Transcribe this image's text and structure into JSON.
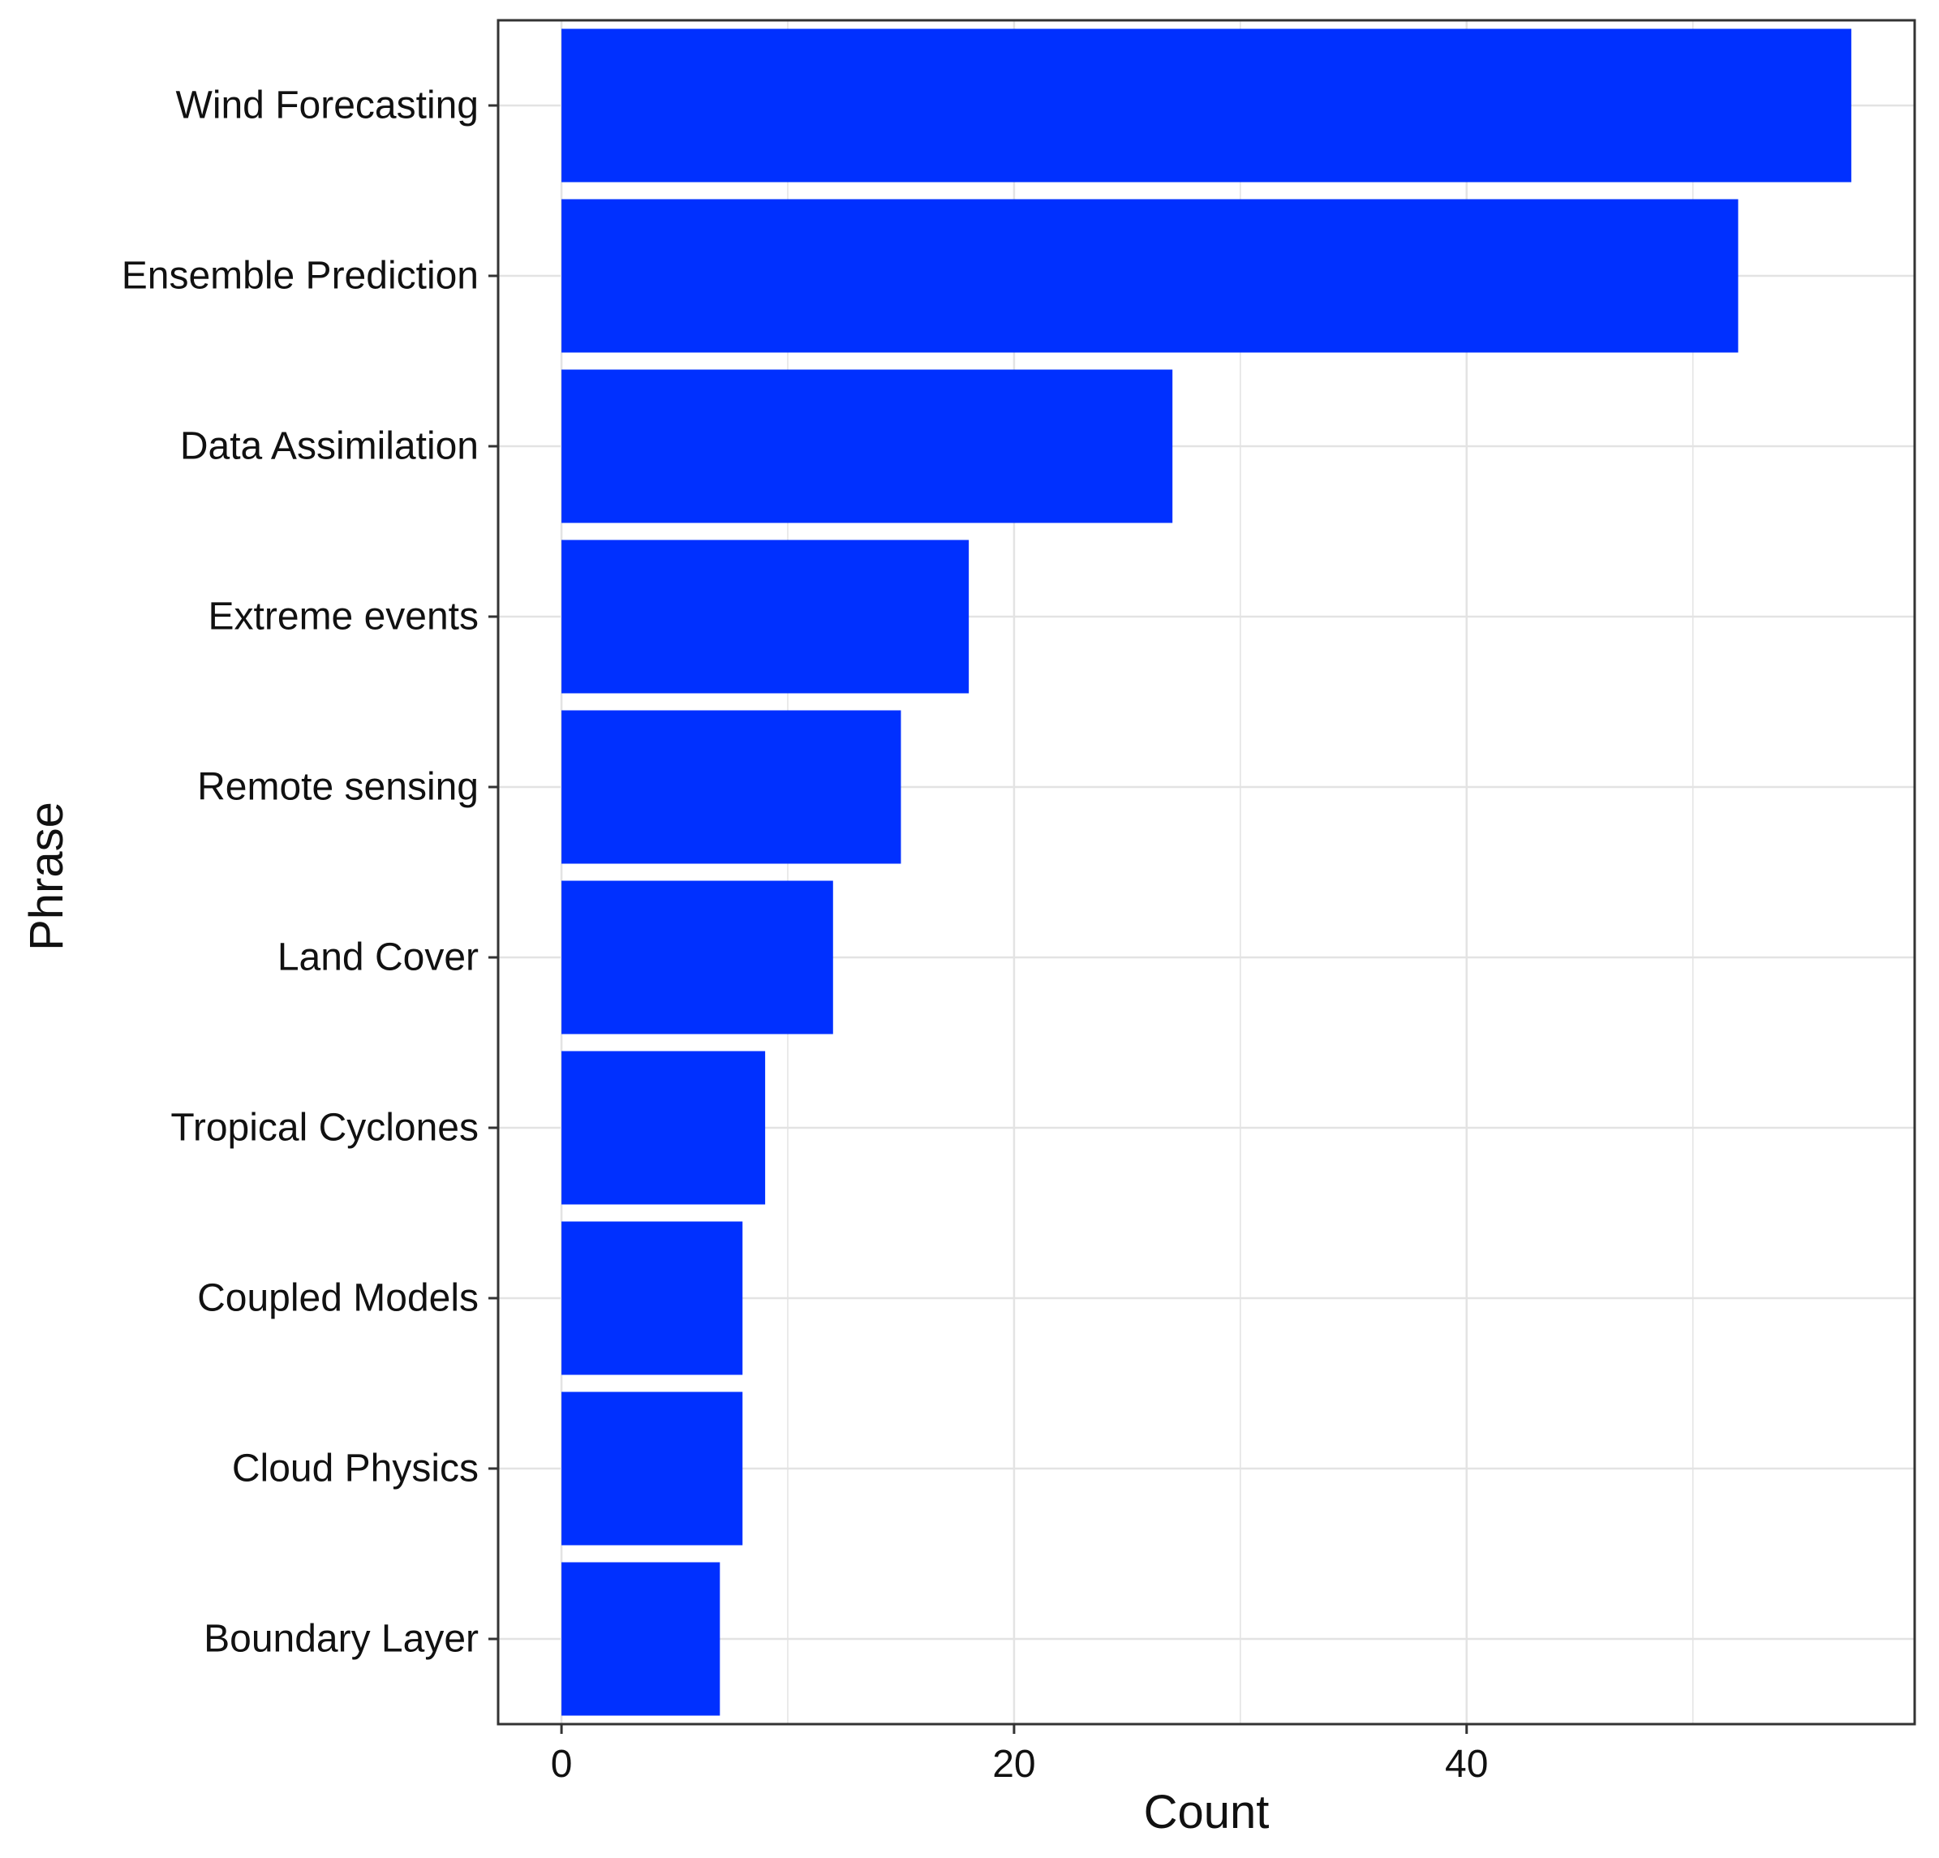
{
  "chart_data": {
    "type": "bar",
    "orientation": "horizontal",
    "categories": [
      "Wind Forecasting",
      "Ensemble Prediction",
      "Data Assimilation",
      "Extreme events",
      "Remote sensing",
      "Land Cover",
      "Tropical Cyclones",
      "Coupled Models",
      "Cloud Physics",
      "Boundary Layer"
    ],
    "values": [
      57,
      52,
      27,
      18,
      15,
      12,
      9,
      8,
      8,
      7
    ],
    "title": "",
    "xlabel": "Count",
    "ylabel": "Phrase",
    "xlim": [
      -2.8,
      59.8
    ],
    "xticks": [
      0,
      20,
      40
    ],
    "xtick_labels": [
      "0",
      "20",
      "40"
    ],
    "minor_gridlines_x": [
      10,
      30,
      50
    ],
    "grid": true,
    "legend": "none",
    "bar_color": "#0030FF",
    "gridline_color": "#E3E3E3",
    "border_color": "#333333"
  }
}
